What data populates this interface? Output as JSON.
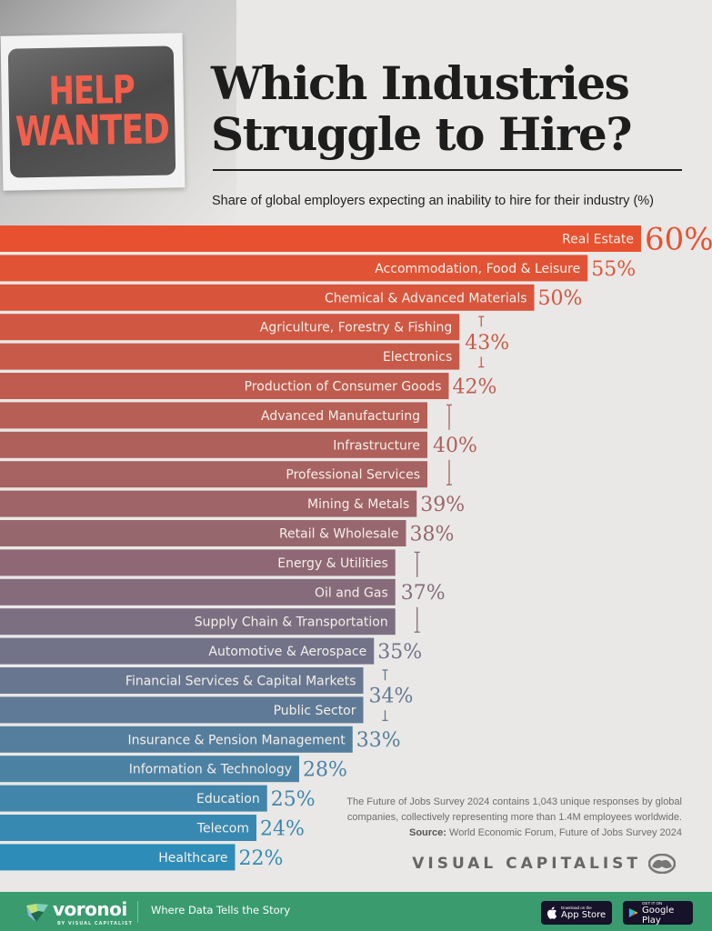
{
  "header": {
    "sign_text_line1": "HELP",
    "sign_text_line2": "WANTED",
    "title_line1": "Which Industries",
    "title_line2": "Struggle to Hire?",
    "subtitle": "Share of global employers expecting an inability to hire for their industry (%)"
  },
  "chart_data": {
    "type": "bar",
    "orientation": "horizontal",
    "title": "Which Industries Struggle to Hire?",
    "subtitle": "Share of global employers expecting an inability to hire for their industry (%)",
    "xlabel": "",
    "ylabel": "",
    "unit": "%",
    "xlim": [
      0,
      60
    ],
    "grid": false,
    "legend": "none",
    "categories": [
      "Real Estate",
      "Accommodation, Food & Leisure",
      "Chemical & Advanced Materials",
      "Agriculture, Forestry & Fishing",
      "Electronics",
      "Production of Consumer Goods",
      "Advanced Manufacturing",
      "Infrastructure",
      "Professional Services",
      "Mining & Metals",
      "Retail & Wholesale",
      "Energy & Utilities",
      "Oil and Gas",
      "Supply Chain & Transportation",
      "Automotive & Aerospace",
      "Financial Services & Capital Markets",
      "Public Sector",
      "Insurance & Pension Management",
      "Information & Technology",
      "Education",
      "Telecom",
      "Healthcare"
    ],
    "values": [
      60,
      55,
      50,
      43,
      43,
      42,
      40,
      40,
      40,
      39,
      38,
      37,
      37,
      37,
      35,
      34,
      34,
      33,
      28,
      25,
      24,
      22
    ],
    "value_groups": [
      {
        "label": "60%",
        "value": 60,
        "rows": [
          0
        ]
      },
      {
        "label": "55%",
        "value": 55,
        "rows": [
          1
        ]
      },
      {
        "label": "50%",
        "value": 50,
        "rows": [
          2
        ]
      },
      {
        "label": "43%",
        "value": 43,
        "rows": [
          3,
          4
        ]
      },
      {
        "label": "42%",
        "value": 42,
        "rows": [
          5
        ]
      },
      {
        "label": "40%",
        "value": 40,
        "rows": [
          6,
          7,
          8
        ]
      },
      {
        "label": "39%",
        "value": 39,
        "rows": [
          9
        ]
      },
      {
        "label": "38%",
        "value": 38,
        "rows": [
          10
        ]
      },
      {
        "label": "37%",
        "value": 37,
        "rows": [
          11,
          12,
          13
        ]
      },
      {
        "label": "35%",
        "value": 35,
        "rows": [
          14
        ]
      },
      {
        "label": "34%",
        "value": 34,
        "rows": [
          15,
          16
        ]
      },
      {
        "label": "33%",
        "value": 33,
        "rows": [
          17
        ]
      },
      {
        "label": "28%",
        "value": 28,
        "rows": [
          18
        ]
      },
      {
        "label": "25%",
        "value": 25,
        "rows": [
          19
        ]
      },
      {
        "label": "24%",
        "value": 24,
        "rows": [
          20
        ]
      },
      {
        "label": "22%",
        "value": 22,
        "rows": [
          21
        ]
      }
    ],
    "color_start": "#e8512f",
    "color_mid": "#8a6a78",
    "color_end": "#2e8db8"
  },
  "notes": {
    "description": "The Future of Jobs Survey 2024 contains 1,043 unique responses by global companies, collectively representing more than 1.4M employees worldwide.",
    "source_label": "Source:",
    "source_text": "World Economic Forum, Future of Jobs Survey 2024",
    "brand": "VISUAL CAPITALIST"
  },
  "footer": {
    "logo_text": "voronoi",
    "logo_sub": "BY VISUAL CAPITALIST",
    "tagline": "Where Data Tells the Story",
    "app_store_small": "Download on the",
    "app_store_big": "App Store",
    "google_play_small": "GET IT ON",
    "google_play_big": "Google Play",
    "accent_color": "#3a9b6f"
  }
}
